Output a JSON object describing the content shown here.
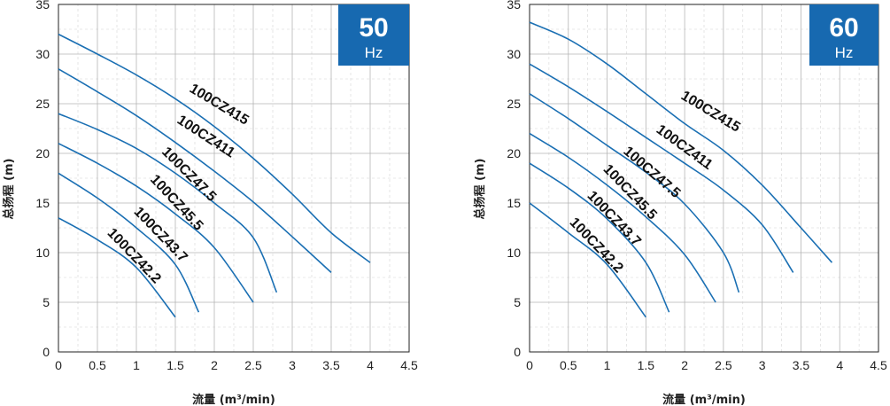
{
  "chart_data": [
    {
      "type": "line",
      "xlabel": "流量 (m³/min)",
      "ylabel": "总扬程 (m)",
      "xlim": [
        0,
        4.5
      ],
      "ylim": [
        0,
        35
      ],
      "x_ticks": [
        "0",
        "0.5",
        "1",
        "1.5",
        "2",
        "2.5",
        "3",
        "3.5",
        "4",
        "4.5"
      ],
      "y_ticks": [
        "0",
        "5",
        "10",
        "15",
        "20",
        "25",
        "30",
        "35"
      ],
      "grid": true,
      "badge": {
        "value": "50",
        "unit": "Hz",
        "color": "#1769b0"
      },
      "series": [
        {
          "name": "100CZ415",
          "color": "#1a6fb3",
          "points": [
            [
              0,
              32
            ],
            [
              0.5,
              30
            ],
            [
              1,
              27.9
            ],
            [
              1.5,
              25.5
            ],
            [
              2,
              22.7
            ],
            [
              2.5,
              19.5
            ],
            [
              3,
              15.9
            ],
            [
              3.5,
              12
            ],
            [
              4,
              9
            ]
          ]
        },
        {
          "name": "100CZ411",
          "color": "#1a6fb3",
          "points": [
            [
              0,
              28.5
            ],
            [
              0.5,
              26.2
            ],
            [
              1,
              23.8
            ],
            [
              1.5,
              21.1
            ],
            [
              2,
              18.2
            ],
            [
              2.5,
              15.1
            ],
            [
              3,
              11.6
            ],
            [
              3.5,
              8
            ]
          ]
        },
        {
          "name": "100CZ47.5",
          "color": "#1a6fb3",
          "points": [
            [
              0,
              24
            ],
            [
              0.5,
              22.4
            ],
            [
              1,
              20.5
            ],
            [
              1.5,
              18
            ],
            [
              2,
              15
            ],
            [
              2.5,
              11.5
            ],
            [
              2.8,
              6
            ]
          ]
        },
        {
          "name": "100CZ45.5",
          "color": "#1a6fb3",
          "points": [
            [
              0,
              21
            ],
            [
              0.5,
              19
            ],
            [
              1,
              16.7
            ],
            [
              1.5,
              13.9
            ],
            [
              2,
              10.5
            ],
            [
              2.5,
              5
            ]
          ]
        },
        {
          "name": "100CZ43.7",
          "color": "#1a6fb3",
          "points": [
            [
              0,
              18
            ],
            [
              0.5,
              15.5
            ],
            [
              1,
              12.5
            ],
            [
              1.5,
              8.8
            ],
            [
              1.8,
              4
            ]
          ]
        },
        {
          "name": "100CZ42.2",
          "color": "#1a6fb3",
          "points": [
            [
              0,
              13.5
            ],
            [
              0.5,
              11.3
            ],
            [
              1,
              8.5
            ],
            [
              1.5,
              3.5
            ]
          ]
        }
      ]
    },
    {
      "type": "line",
      "xlabel": "流量 (m³/min)",
      "ylabel": "总扬程 (m)",
      "xlim": [
        0,
        4.5
      ],
      "ylim": [
        0,
        35
      ],
      "x_ticks": [
        "0",
        "0.5",
        "1",
        "1.5",
        "2",
        "2.5",
        "3",
        "3.5",
        "4",
        "4.5"
      ],
      "y_ticks": [
        "0",
        "5",
        "10",
        "15",
        "20",
        "25",
        "30",
        "35"
      ],
      "grid": true,
      "badge": {
        "value": "60",
        "unit": "Hz",
        "color": "#1769b0"
      },
      "series": [
        {
          "name": "100CZ415",
          "color": "#1a6fb3",
          "points": [
            [
              0,
              33.2
            ],
            [
              0.5,
              31.5
            ],
            [
              1,
              29
            ],
            [
              1.5,
              26
            ],
            [
              2,
              23
            ],
            [
              2.5,
              20.3
            ],
            [
              3,
              16.8
            ],
            [
              3.5,
              12.5
            ],
            [
              3.9,
              9
            ]
          ]
        },
        {
          "name": "100CZ411",
          "color": "#1a6fb3",
          "points": [
            [
              0,
              29
            ],
            [
              0.5,
              26.7
            ],
            [
              1,
              24.2
            ],
            [
              1.5,
              21.6
            ],
            [
              2,
              19
            ],
            [
              2.5,
              16.3
            ],
            [
              3,
              12.8
            ],
            [
              3.4,
              8
            ]
          ]
        },
        {
          "name": "100CZ47.5",
          "color": "#1a6fb3",
          "points": [
            [
              0,
              26
            ],
            [
              0.5,
              23.5
            ],
            [
              1,
              20.8
            ],
            [
              1.5,
              18.1
            ],
            [
              2,
              14.9
            ],
            [
              2.5,
              10
            ],
            [
              2.7,
              6
            ]
          ]
        },
        {
          "name": "100CZ45.5",
          "color": "#1a6fb3",
          "points": [
            [
              0,
              22
            ],
            [
              0.5,
              19.6
            ],
            [
              1,
              16.8
            ],
            [
              1.5,
              13.6
            ],
            [
              2,
              9.8
            ],
            [
              2.4,
              5
            ]
          ]
        },
        {
          "name": "100CZ43.7",
          "color": "#1a6fb3",
          "points": [
            [
              0,
              19
            ],
            [
              0.5,
              16.5
            ],
            [
              1,
              13.4
            ],
            [
              1.5,
              9
            ],
            [
              1.8,
              4
            ]
          ]
        },
        {
          "name": "100CZ42.2",
          "color": "#1a6fb3",
          "points": [
            [
              0,
              15
            ],
            [
              0.5,
              12
            ],
            [
              1,
              8.8
            ],
            [
              1.5,
              3.5
            ]
          ]
        }
      ]
    }
  ]
}
